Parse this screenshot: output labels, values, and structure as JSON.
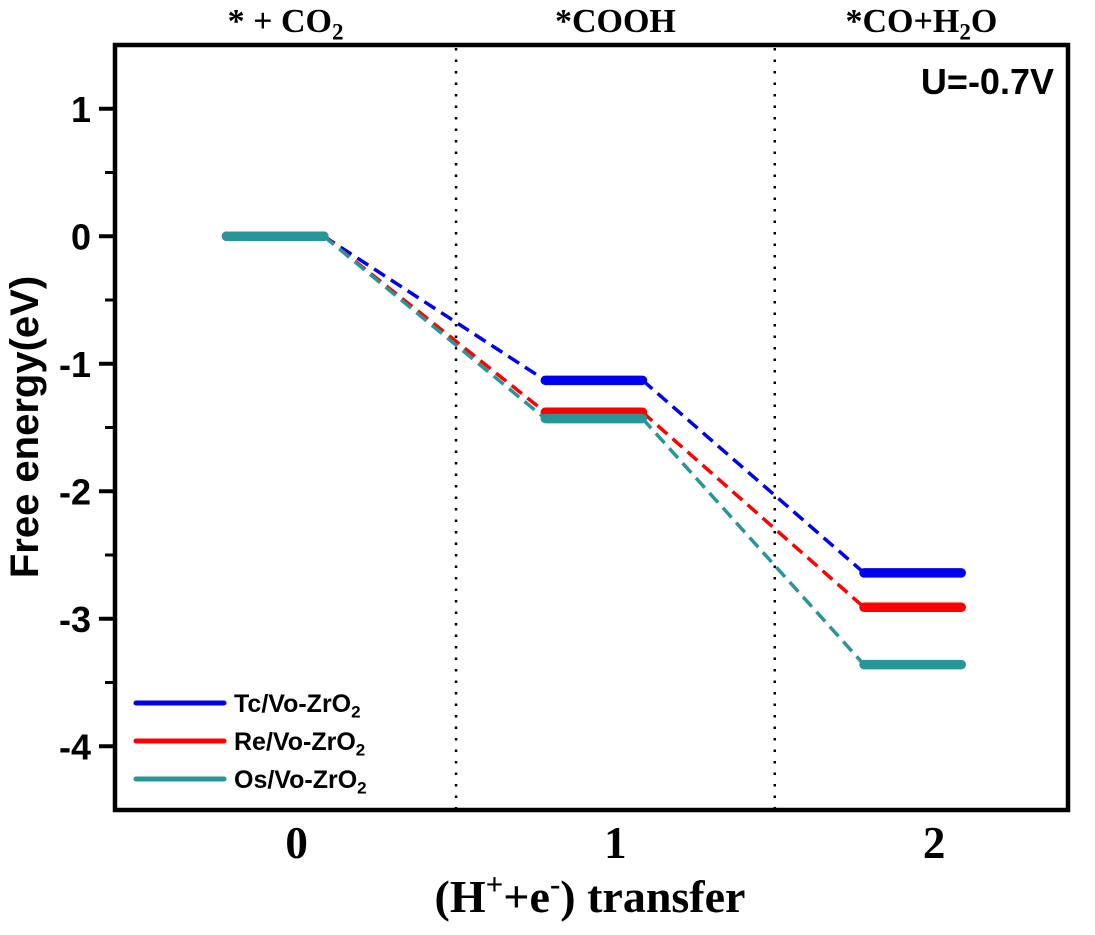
{
  "chart_data": {
    "type": "line",
    "title": "",
    "ylabel": "Free energy(eV)",
    "xlabel_parts": [
      {
        "t": "(H"
      },
      {
        "t": "+",
        "sup": true
      },
      {
        "t": "+e"
      },
      {
        "t": "-",
        "sup": true
      },
      {
        "t": ") transfer"
      }
    ],
    "annotation": "U=-0.7V",
    "x": [
      0,
      1,
      2
    ],
    "x_tick_labels": [
      "0",
      "1",
      "2"
    ],
    "y_major_ticks": [
      1,
      0,
      -1,
      -2,
      -3,
      -4
    ],
    "y_minor_step": 0.5,
    "xlim": [
      -0.57,
      2.42
    ],
    "ylim": [
      -4.5,
      1.5
    ],
    "grid": false,
    "legend_position": "bottom-left",
    "stage_separators_x": [
      0.5,
      1.5
    ],
    "stages": [
      {
        "x": 0,
        "parts": [
          {
            "t": "* + CO"
          },
          {
            "t": "2",
            "sub": true
          }
        ]
      },
      {
        "x": 1,
        "parts": [
          {
            "t": "*COOH"
          }
        ]
      },
      {
        "x": 2,
        "parts": [
          {
            "t": "*CO+H"
          },
          {
            "t": "2",
            "sub": true
          },
          {
            "t": "O"
          }
        ]
      }
    ],
    "series": [
      {
        "name": "Tc/Vo-ZrO2",
        "label_parts": [
          {
            "t": "Tc/Vo-ZrO"
          },
          {
            "t": "2",
            "sub": true
          }
        ],
        "color": "#0000EE",
        "values": [
          0,
          -1.13,
          -2.64
        ]
      },
      {
        "name": "Re/Vo-ZrO2",
        "label_parts": [
          {
            "t": "Re/Vo-ZrO"
          },
          {
            "t": "2",
            "sub": true
          }
        ],
        "color": "#FE0000",
        "values": [
          0,
          -1.38,
          -2.91
        ]
      },
      {
        "name": "Os/Vo-ZrO2",
        "label_parts": [
          {
            "t": "Os/Vo-ZrO"
          },
          {
            "t": "2",
            "sub": true
          }
        ],
        "color": "#289696",
        "values": [
          0,
          -1.43,
          -3.36
        ]
      }
    ],
    "axis_color": "#000000"
  }
}
